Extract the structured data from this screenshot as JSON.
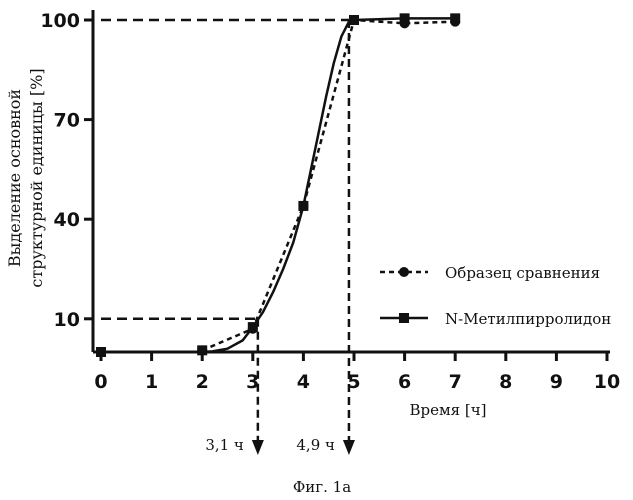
{
  "chart_data": {
    "type": "line",
    "ylabel_line1": "Выделение основной",
    "ylabel_line2": "структурной единицы [%]",
    "xlabel": "Время [ч]",
    "caption": "Фиг. 1а",
    "xlim": [
      0,
      10
    ],
    "ylim": [
      0,
      100
    ],
    "x_ticks": [
      0,
      1,
      2,
      3,
      4,
      5,
      6,
      7,
      8,
      9,
      10
    ],
    "y_ticks": [
      10,
      40,
      70,
      100
    ],
    "series": [
      {
        "name": "Образец сравнения",
        "style": "dashed",
        "marker": "circle",
        "x": [
          2,
          3,
          4,
          5,
          6,
          7
        ],
        "y": [
          0.5,
          7,
          44,
          100,
          99,
          99.5
        ]
      },
      {
        "name": "N-Метилпирролидон",
        "style": "solid",
        "marker": "square",
        "x": [
          0,
          2,
          3,
          4,
          5,
          6,
          7
        ],
        "y": [
          0,
          0.5,
          7.5,
          44,
          100,
          100.5,
          100.5
        ],
        "curve": [
          [
            0,
            0
          ],
          [
            2,
            0
          ],
          [
            2.2,
            0.2
          ],
          [
            2.5,
            1
          ],
          [
            2.8,
            3.5
          ],
          [
            3.0,
            7.5
          ],
          [
            3.2,
            12
          ],
          [
            3.4,
            18
          ],
          [
            3.6,
            25
          ],
          [
            3.8,
            33
          ],
          [
            4.0,
            44
          ],
          [
            4.15,
            55
          ],
          [
            4.3,
            66
          ],
          [
            4.45,
            77
          ],
          [
            4.6,
            87
          ],
          [
            4.75,
            95
          ],
          [
            4.9,
            99.5
          ],
          [
            5.0,
            100
          ],
          [
            6,
            100.5
          ],
          [
            7,
            100.5
          ]
        ]
      }
    ],
    "annotations": [
      {
        "x": 3.1,
        "y": 10,
        "label": "3,1 ч"
      },
      {
        "x": 4.9,
        "y": 100,
        "label": "4,9 ч"
      }
    ]
  }
}
